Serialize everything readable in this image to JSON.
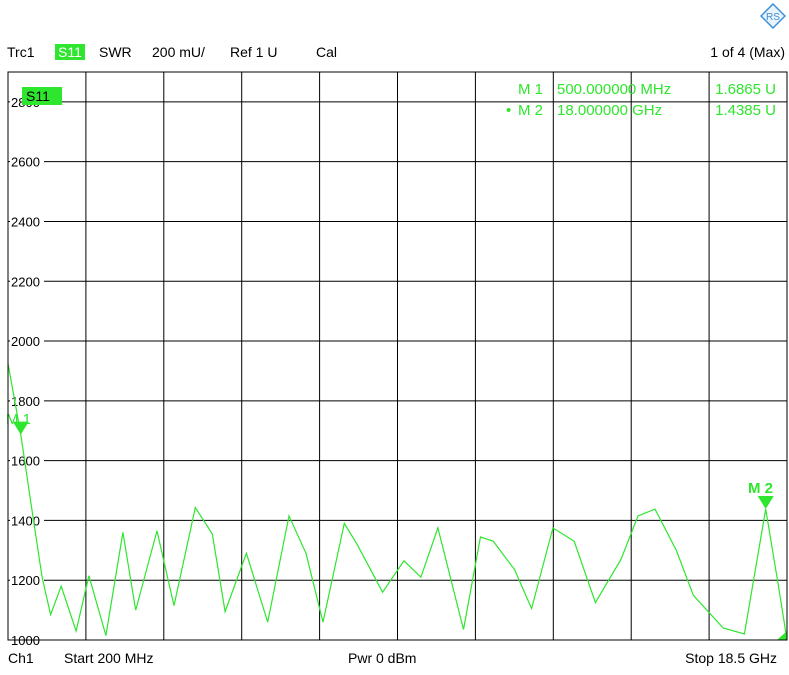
{
  "header": {
    "trace": "Trc1",
    "param": "S11",
    "format": "SWR",
    "scale": "200 mU/",
    "ref": "Ref 1 U",
    "cal": "Cal",
    "page": "1 of 4 (Max)"
  },
  "trace_badge": "S11",
  "markers": [
    {
      "label": "M 1",
      "active": false,
      "freq": "500.000000 MHz",
      "value": "1.6865 U"
    },
    {
      "label": "M 2",
      "active": true,
      "freq": "18.000000 GHz",
      "value": "1.4385 U"
    }
  ],
  "footer": {
    "channel": "Ch1",
    "start": "Start  200 MHz",
    "power": "Pwr  0 dBm",
    "stop": "Stop  18.5 GHz"
  },
  "colors": {
    "trace": "#2ee62e",
    "grid": "#000000",
    "logo": "#3b8fd6"
  },
  "chart_data": {
    "type": "line",
    "x_unit": "GHz",
    "xlim": [
      0.2,
      18.5
    ],
    "ylim": [
      1000,
      2900
    ],
    "yticks": [
      1000,
      1200,
      1400,
      1600,
      1800,
      2000,
      2200,
      2400,
      2600,
      2800
    ],
    "ytick_labels": [
      "1000",
      "1200",
      "1400",
      "1600",
      "1800",
      "2000",
      "2200",
      "2400",
      "2600",
      "2800"
    ],
    "grid": true,
    "series": [
      {
        "name": "S11",
        "x": [
          0.2,
          0.5,
          0.8,
          1.0,
          1.2,
          1.45,
          1.8,
          2.1,
          2.5,
          2.9,
          3.2,
          3.7,
          4.1,
          4.6,
          5.0,
          5.3,
          5.8,
          6.3,
          6.8,
          7.2,
          7.6,
          8.1,
          8.4,
          9.0,
          9.5,
          9.9,
          10.3,
          10.9,
          11.3,
          11.6,
          12.1,
          12.5,
          13.0,
          13.5,
          14.0,
          14.6,
          15.0,
          15.4,
          15.9,
          16.3,
          17.0,
          17.5,
          18.0,
          18.3,
          18.5
        ],
        "y": [
          1925,
          1687,
          1400,
          1210,
          1085,
          1180,
          1030,
          1215,
          1015,
          1360,
          1100,
          1365,
          1115,
          1443,
          1355,
          1095,
          1290,
          1060,
          1415,
          1290,
          1060,
          1390,
          1320,
          1160,
          1265,
          1210,
          1375,
          1035,
          1345,
          1330,
          1235,
          1105,
          1375,
          1330,
          1125,
          1270,
          1415,
          1438,
          1300,
          1150,
          1040,
          1020,
          1438,
          1180,
          1000
        ]
      }
    ]
  }
}
